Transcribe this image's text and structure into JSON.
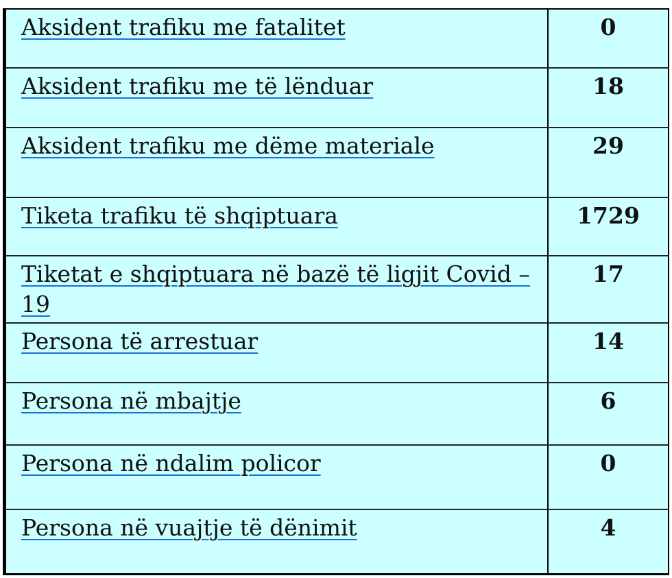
{
  "colors": {
    "background": "#ccffff",
    "underline": "#1a6fd6",
    "border": "#000000"
  },
  "rows": [
    {
      "label": "Aksident trafiku me fatalitet",
      "value": "0"
    },
    {
      "label": "Aksident trafiku  me të lënduar",
      "value": "18"
    },
    {
      "label": "Aksident trafiku  me dëme materiale",
      "value": "29"
    },
    {
      "label": "Tiketa trafiku të shqiptuara",
      "value": "1729"
    },
    {
      "label": "Tiketat e shqiptuara në bazë të ligjit Covid – 19",
      "value": "17"
    },
    {
      "label": "Persona të arrestuar",
      "value": "14"
    },
    {
      "label": "Persona në mbajtje",
      "value": "6"
    },
    {
      "label": "Persona në ndalim policor ",
      "value": "0"
    },
    {
      "label": "Persona në vuajtje të dënimit",
      "value": "4"
    }
  ]
}
